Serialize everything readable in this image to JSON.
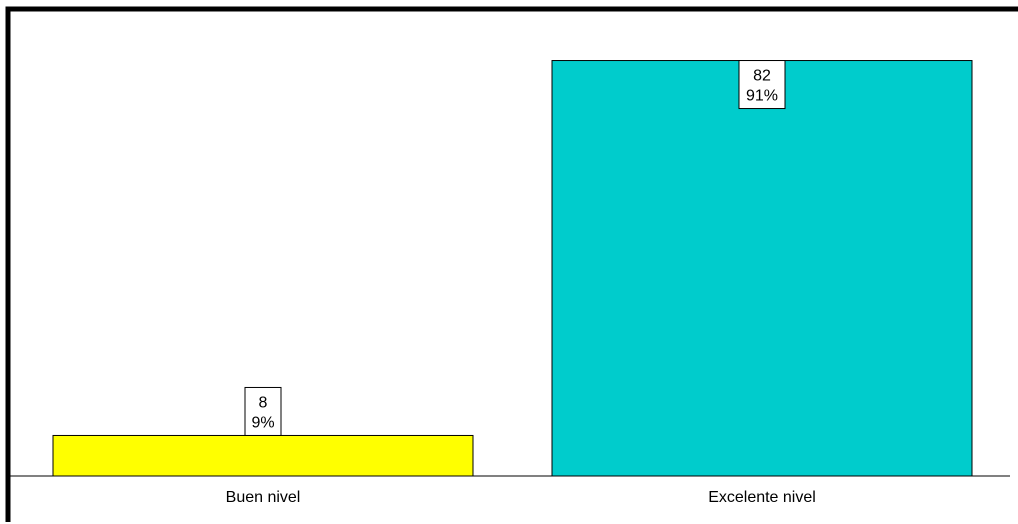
{
  "chart_data": {
    "type": "bar",
    "categories": [
      "Buen nivel",
      "Excelente nivel"
    ],
    "values": [
      8,
      82
    ],
    "percent_labels": [
      "9%",
      "91%"
    ],
    "colors": [
      "#ffff00",
      "#00cccc"
    ],
    "ylim": [
      0,
      90
    ],
    "grid": false,
    "title": "",
    "xlabel": "",
    "ylabel": ""
  }
}
